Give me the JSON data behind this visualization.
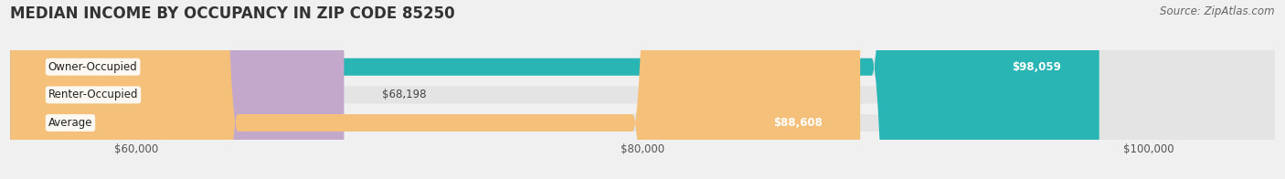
{
  "title": "MEDIAN INCOME BY OCCUPANCY IN ZIP CODE 85250",
  "source": "Source: ZipAtlas.com",
  "categories": [
    "Owner-Occupied",
    "Renter-Occupied",
    "Average"
  ],
  "values": [
    98059,
    68198,
    88608
  ],
  "bar_colors": [
    "#2ab5b5",
    "#c4a8cc",
    "#f5c07a"
  ],
  "value_labels": [
    "$98,059",
    "$68,198",
    "$88,608"
  ],
  "value_label_inside": [
    true,
    false,
    true
  ],
  "x_min": 55000,
  "x_max": 105000,
  "x_ticks": [
    60000,
    80000,
    100000
  ],
  "x_tick_labels": [
    "$60,000",
    "$80,000",
    "$100,000"
  ],
  "background_color": "#f0f0f0",
  "bar_bg_color": "#e4e4e4",
  "title_fontsize": 12,
  "source_fontsize": 8.5,
  "bar_label_fontsize": 8.5,
  "value_label_fontsize": 8.5,
  "tick_fontsize": 8.5
}
